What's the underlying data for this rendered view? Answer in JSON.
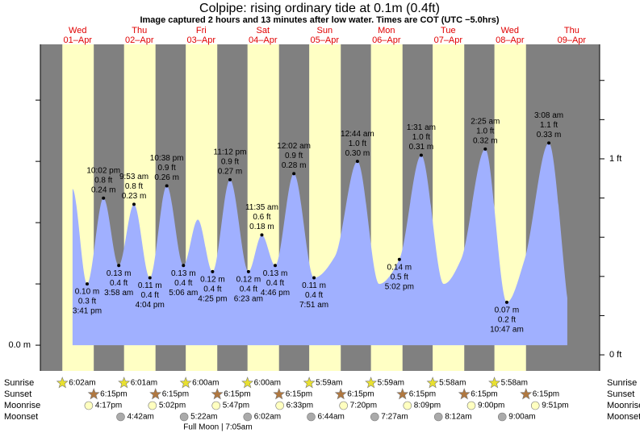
{
  "chart_data": {
    "type": "tide",
    "title": "Colpipe: rising  ordinary tide at 0.1m (0.4ft)",
    "subtitle": "Image captured 2 hours and 13 minutes after low water. Times are COT (UTC −5.0hrs)",
    "xlim": [
      -2.51,
      214.87
    ],
    "xticks": [
      {
        "value": 12,
        "label": "01–Apr"
      },
      {
        "value": 36,
        "label": "02–Apr"
      },
      {
        "value": 60,
        "label": "03–Apr"
      },
      {
        "value": 84,
        "label": "04–Apr"
      },
      {
        "value": 108,
        "label": "05–Apr"
      },
      {
        "value": 132,
        "label": "06–Apr"
      },
      {
        "value": 156,
        "label": "07–Apr"
      },
      {
        "value": 180,
        "label": "08–Apr"
      },
      {
        "value": 204,
        "label": "09–Apr"
      }
    ],
    "weekdays": [
      "Wed",
      "Thu",
      "Fri",
      "Sat",
      "Sun",
      "Mon",
      "Tue",
      "Wed",
      "Thu"
    ],
    "ylim": [
      -0.042,
      0.491
    ],
    "yticks": [
      {
        "value": 0,
        "label": "0.0 m"
      }
    ],
    "y_minor_ticks": [
      0.1,
      0.2,
      0.3,
      0.4
    ],
    "y2lim": [
      -0.082,
      1.584
    ],
    "y2ticks": [
      {
        "value": 0,
        "label": "0 ft"
      },
      {
        "value": 1,
        "label": "1 ft"
      }
    ],
    "y2_minor_ticks": [
      0.2,
      0.4,
      0.6,
      0.8,
      1.2,
      1.4
    ],
    "colors": {
      "night": "#808080",
      "day": "#ffffc4",
      "tide": "#a0b0ff"
    },
    "series": [
      {
        "x": [
          10.0,
          15.68,
          22.03,
          27.97,
          33.88,
          40.07,
          46.63,
          53.1,
          58.7,
          64.42,
          71.2,
          78.38,
          83.58,
          88.77,
          96.03,
          103.85,
          112,
          120.73,
          129.2,
          137.03,
          145.52,
          154.3,
          161.0,
          170.42,
          178.78,
          185.7,
          195.13,
          202.3
        ],
        "values": [
          0.255,
          0.1,
          0.24,
          0.13,
          0.23,
          0.11,
          0.26,
          0.13,
          0.205,
          0.12,
          0.27,
          0.12,
          0.18,
          0.13,
          0.28,
          0.11,
          0.145,
          0.3,
          0.1,
          0.14,
          0.31,
          0.1,
          0.14,
          0.32,
          0.07,
          0.14,
          0.33,
          0.077
        ]
      }
    ],
    "annotations": [
      {
        "x": 15.68,
        "value": 0.1,
        "value_label": "0.10 m",
        "ft_label": "0.3 ft",
        "time": "3:41 pm",
        "position": "below"
      },
      {
        "x": 22.03,
        "value": 0.24,
        "value_label": "0.24 m",
        "ft_label": "0.8 ft",
        "time": "10:02 pm",
        "position": "above"
      },
      {
        "x": 27.97,
        "value": 0.13,
        "value_label": "0.13 m",
        "ft_label": "0.4 ft",
        "time": "3:58 am",
        "position": "below"
      },
      {
        "x": 33.88,
        "value": 0.23,
        "value_label": "0.23 m",
        "ft_label": "0.8 ft",
        "time": "9:53 am",
        "position": "above"
      },
      {
        "x": 40.07,
        "value": 0.11,
        "value_label": "0.11 m",
        "ft_label": "0.4 ft",
        "time": "4:04 pm",
        "position": "below"
      },
      {
        "x": 46.63,
        "value": 0.26,
        "value_label": "0.26 m",
        "ft_label": "0.9 ft",
        "time": "10:38 pm",
        "position": "above"
      },
      {
        "x": 53.1,
        "value": 0.13,
        "value_label": "0.13 m",
        "ft_label": "0.4 ft",
        "time": "5:06 am",
        "position": "below"
      },
      {
        "x": 64.42,
        "value": 0.12,
        "value_label": "0.12 m",
        "ft_label": "0.4 ft",
        "time": "4:25 pm",
        "position": "below"
      },
      {
        "x": 71.2,
        "value": 0.27,
        "value_label": "0.27 m",
        "ft_label": "0.9 ft",
        "time": "11:12 pm",
        "position": "above"
      },
      {
        "x": 78.38,
        "value": 0.12,
        "value_label": "0.12 m",
        "ft_label": "0.4 ft",
        "time": "6:23 am",
        "position": "below"
      },
      {
        "x": 83.58,
        "value": 0.18,
        "value_label": "0.18 m",
        "ft_label": "0.6 ft",
        "time": "11:35 am",
        "position": "above"
      },
      {
        "x": 88.77,
        "value": 0.13,
        "value_label": "0.13 m",
        "ft_label": "0.4 ft",
        "time": "4:46 pm",
        "position": "below"
      },
      {
        "x": 96.03,
        "value": 0.28,
        "value_label": "0.28 m",
        "ft_label": "0.9 ft",
        "time": "12:02 am",
        "position": "above"
      },
      {
        "x": 103.85,
        "value": 0.11,
        "value_label": "0.11 m",
        "ft_label": "0.4 ft",
        "time": "7:51 am",
        "position": "below"
      },
      {
        "x": 120.73,
        "value": 0.3,
        "value_label": "0.30 m",
        "ft_label": "1.0 ft",
        "time": "12:44 am",
        "position": "above"
      },
      {
        "x": 137.03,
        "value": 0.14,
        "value_label": "0.14 m",
        "ft_label": "0.5 ft",
        "time": "5:02 pm",
        "position": "below"
      },
      {
        "x": 145.52,
        "value": 0.31,
        "value_label": "0.31 m",
        "ft_label": "1.0 ft",
        "time": "1:31 am",
        "position": "above"
      },
      {
        "x": 170.42,
        "value": 0.32,
        "value_label": "0.32 m",
        "ft_label": "1.0 ft",
        "time": "2:25 am",
        "position": "above"
      },
      {
        "x": 178.78,
        "value": 0.07,
        "value_label": "0.07 m",
        "ft_label": "0.2 ft",
        "time": "10:47 am",
        "position": "below"
      },
      {
        "x": 195.13,
        "value": 0.33,
        "value_label": "0.33 m",
        "ft_label": "1.1 ft",
        "time": "3:08 am",
        "position": "above"
      }
    ],
    "sun_moon": {
      "row_labels": [
        "Sunrise",
        "Sunset",
        "Moonrise",
        "Moonset"
      ],
      "sunrise": [
        "6:02am",
        "6:01am",
        "6:00am",
        "6:00am",
        "5:59am",
        "5:59am",
        "5:58am",
        "5:58am"
      ],
      "sunset": [
        "6:15pm",
        "6:15pm",
        "6:15pm",
        "6:15pm",
        "6:15pm",
        "6:15pm",
        "6:15pm",
        "6:15pm"
      ],
      "moonrise": [
        "4:17pm",
        "5:02pm",
        "5:47pm",
        "6:33pm",
        "7:20pm",
        "8:09pm",
        "9:00pm",
        "9:51pm"
      ],
      "moonset": [
        null,
        "4:42am",
        "5:22am",
        "6:02am",
        "6:44am",
        "7:27am",
        "8:12am",
        "9:00am"
      ],
      "moon_phase": "Full Moon | 7:05am"
    }
  }
}
